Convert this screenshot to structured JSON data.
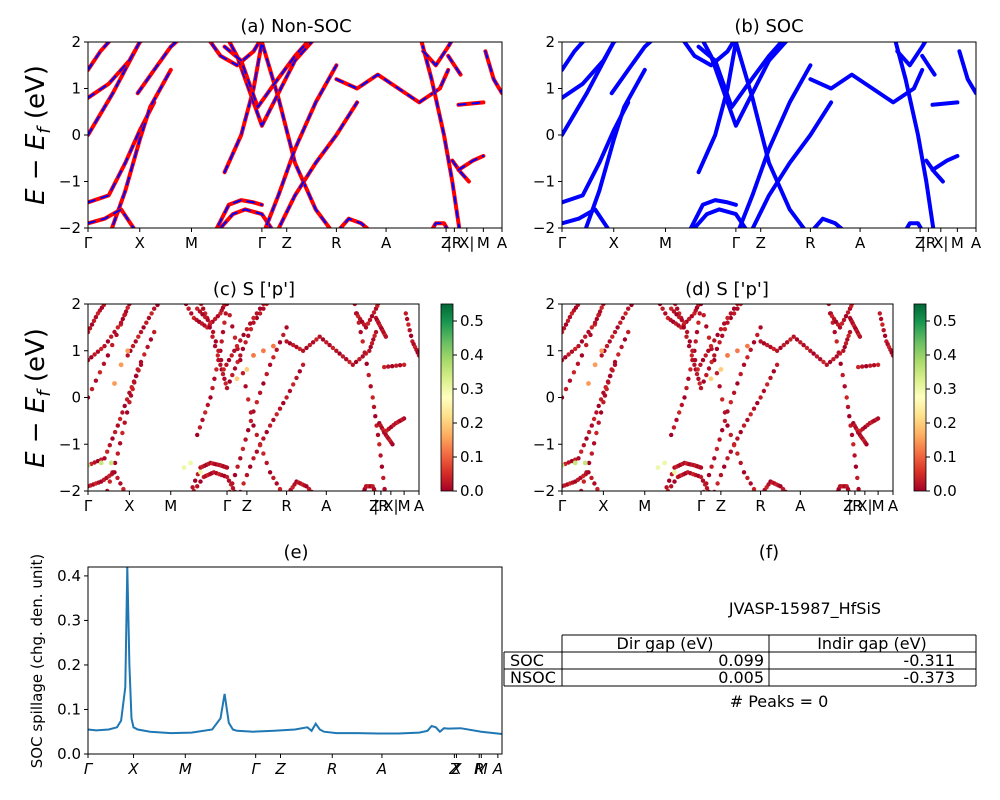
{
  "figure": {
    "ylabel_energy_main": "E − E",
    "ylabel_energy_sub": "f",
    "ylabel_energy_unit": " (eV)"
  },
  "colors": {
    "nsoc_line": "#ff0000",
    "soc_line": "#0000ff",
    "spillage_line": "#1f77b4",
    "colormap": [
      "#a50026",
      "#d73027",
      "#f46d43",
      "#fdae61",
      "#fee08b",
      "#ffffbf",
      "#d9ef8b",
      "#a6d96a",
      "#66bd63",
      "#1a9850",
      "#006837"
    ]
  },
  "kpath_labels": [
    "Γ",
    "X",
    "M",
    "Γ",
    "Z",
    "R",
    "A",
    "Z",
    "|R",
    "X|",
    "M",
    "A"
  ],
  "kpath_positions": [
    0,
    0.125,
    0.25,
    0.42,
    0.48,
    0.6,
    0.72,
    0.865,
    0.885,
    0.915,
    0.955,
    1.0
  ],
  "kpath_labels_spillage": [
    "Γ",
    "X",
    "M",
    "Γ",
    "Z",
    "R",
    "A",
    "Z",
    "X",
    "R",
    "M",
    "A"
  ],
  "kpath_positions_spillage": [
    0,
    0.11,
    0.235,
    0.405,
    0.465,
    0.59,
    0.71,
    0.885,
    0.89,
    0.945,
    0.95,
    0.99
  ],
  "chart_data": [
    {
      "id": "a",
      "type": "line",
      "title": "(a) Non-SOC",
      "ylim": [
        -2,
        2
      ],
      "yticks": [
        -2,
        -1,
        0,
        1,
        2
      ],
      "series_styles": [
        "NSOC solid red",
        "SOC dashed blue"
      ],
      "bands_note": "curves are sampled values of E-Ef (eV) along the k-path fraction x",
      "bands": [
        {
          "x": [
            0,
            0.06,
            0.125,
            0.19,
            0.25
          ],
          "y": [
            0,
            0.9,
            2.0,
            2.4,
            2.6
          ]
        },
        {
          "x": [
            0,
            0.05,
            0.1,
            0.125,
            0.16,
            0.2
          ],
          "y": [
            0.8,
            1.1,
            1.6,
            2.0,
            2.3,
            2.5
          ]
        },
        {
          "x": [
            0,
            0.03,
            0.06,
            0.09,
            0.125
          ],
          "y": [
            1.4,
            1.8,
            2.1,
            2.3,
            2.4
          ]
        },
        {
          "x": [
            0,
            0.05,
            0.09,
            0.125,
            0.16
          ],
          "y": [
            -1.45,
            -1.3,
            -0.6,
            0.1,
            0.7
          ]
        },
        {
          "x": [
            0.05,
            0.09,
            0.125,
            0.15,
            0.2
          ],
          "y": [
            -2.2,
            -1.2,
            -0.1,
            0.6,
            1.4
          ]
        },
        {
          "x": [
            0,
            0.04,
            0.08,
            0.125,
            0.17
          ],
          "y": [
            -1.9,
            -1.8,
            -1.6,
            -2.2,
            -2.6
          ]
        },
        {
          "x": [
            0.12,
            0.16,
            0.2,
            0.25
          ],
          "y": [
            0.9,
            1.4,
            1.9,
            2.3
          ]
        },
        {
          "x": [
            0.28,
            0.32,
            0.36,
            0.4,
            0.42
          ],
          "y": [
            2.2,
            1.7,
            1.5,
            1.8,
            2.1
          ]
        },
        {
          "x": [
            0.3,
            0.34,
            0.37,
            0.4,
            0.42
          ],
          "y": [
            -2.2,
            -1.5,
            -1.4,
            -1.45,
            -1.5
          ]
        },
        {
          "x": [
            0.3,
            0.35,
            0.38,
            0.42,
            0.45
          ],
          "y": [
            -2.2,
            -1.7,
            -1.6,
            -1.7,
            -2.1
          ]
        },
        {
          "x": [
            0.33,
            0.37,
            0.4,
            0.42,
            0.46,
            0.5,
            0.55,
            0.6
          ],
          "y": [
            -0.8,
            0.0,
            1.0,
            2.0,
            0.8,
            -0.6,
            -1.6,
            -2.2
          ]
        },
        {
          "x": [
            0.33,
            0.36,
            0.4,
            0.42,
            0.46,
            0.5,
            0.55
          ],
          "y": [
            2.2,
            1.7,
            0.7,
            0.2,
            0.9,
            1.6,
            2.1
          ]
        },
        {
          "x": [
            0.33,
            0.37,
            0.41,
            0.45,
            0.5,
            0.55
          ],
          "y": [
            1.9,
            1.6,
            0.6,
            1.1,
            1.7,
            2.2
          ]
        },
        {
          "x": [
            0.42,
            0.46,
            0.5,
            0.55,
            0.6
          ],
          "y": [
            -2.2,
            -1.3,
            -0.3,
            0.7,
            1.5
          ]
        },
        {
          "x": [
            0.45,
            0.5,
            0.55,
            0.6,
            0.65
          ],
          "y": [
            -2.2,
            -1.3,
            -0.6,
            0.0,
            0.7
          ]
        },
        {
          "x": [
            0.6,
            0.63,
            0.66,
            0.7,
            0.74
          ],
          "y": [
            -2.1,
            -1.8,
            -1.9,
            -2.2,
            -2.4
          ]
        },
        {
          "x": [
            0.6,
            0.65,
            0.7,
            0.75,
            0.8,
            0.85,
            0.87
          ],
          "y": [
            1.2,
            1.0,
            1.3,
            1.0,
            0.7,
            1.0,
            1.4
          ]
        },
        {
          "x": [
            0.8,
            0.83,
            0.86,
            0.88,
            0.9
          ],
          "y": [
            2.2,
            1.2,
            0.0,
            -1.0,
            -2.2
          ]
        },
        {
          "x": [
            0.81,
            0.84,
            0.87,
            0.89
          ],
          "y": [
            1.8,
            1.5,
            1.9,
            2.2
          ]
        },
        {
          "x": [
            0.82,
            0.84,
            0.86,
            0.88
          ],
          "y": [
            -2.2,
            -1.9,
            -1.9,
            -2.2
          ]
        },
        {
          "x": [
            0.88,
            0.9,
            0.92
          ],
          "y": [
            -0.55,
            -0.8,
            -1.0
          ]
        },
        {
          "x": [
            0.87,
            0.885,
            0.9
          ],
          "y": [
            1.7,
            1.5,
            1.3
          ]
        },
        {
          "x": [
            0.895,
            0.955
          ],
          "y": [
            0.65,
            0.7
          ]
        },
        {
          "x": [
            0.895,
            0.93,
            0.955
          ],
          "y": [
            -0.75,
            -0.55,
            -0.45
          ]
        },
        {
          "x": [
            0.96,
            0.98,
            1.0
          ],
          "y": [
            1.8,
            1.2,
            0.9
          ]
        }
      ]
    },
    {
      "id": "b",
      "type": "line",
      "title": "(b) SOC",
      "ylim": [
        -2,
        2
      ],
      "yticks": [
        -2,
        -1,
        0,
        1,
        2
      ],
      "series_styles": [
        "SOC solid blue"
      ],
      "bands_same_as": "a"
    },
    {
      "id": "c",
      "type": "scatter",
      "title": "(c)  S ['p']",
      "ylim": [
        -2,
        2
      ],
      "yticks": [
        -2,
        -1,
        0,
        1,
        2
      ],
      "colorbar": {
        "min": 0.0,
        "max": 0.55,
        "ticks": [
          "0.0",
          "0.1",
          "0.2",
          "0.3",
          "0.4",
          "0.5"
        ]
      },
      "bands_same_as": "a",
      "highlights": [
        {
          "x": [
            0.0,
            0.04,
            0.07
          ],
          "y": [
            -1.45,
            -1.4,
            -1.4
          ],
          "value": 0.35
        },
        {
          "x": [
            0.08,
            0.1,
            0.12
          ],
          "y": [
            0.3,
            0.7,
            1.0
          ],
          "value": 0.15
        },
        {
          "x": [
            0.29,
            0.31,
            0.34
          ],
          "y": [
            -1.5,
            -1.4,
            -1.6
          ],
          "value": 0.3
        },
        {
          "x": [
            0.45,
            0.48,
            0.5
          ],
          "y": [
            0.4,
            0.6,
            0.9
          ],
          "value": 0.2
        },
        {
          "x": [
            0.5,
            0.53,
            0.56
          ],
          "y": [
            0.9,
            1.0,
            1.1
          ],
          "value": 0.12
        }
      ]
    },
    {
      "id": "d",
      "type": "scatter",
      "title": "(d) S ['p']",
      "ylim": [
        -2,
        2
      ],
      "yticks": [
        -2,
        -1,
        0,
        1,
        2
      ],
      "colorbar": {
        "min": 0.0,
        "max": 0.55,
        "ticks": [
          "0.0",
          "0.1",
          "0.2",
          "0.3",
          "0.4",
          "0.5"
        ]
      },
      "bands_same_as": "c"
    },
    {
      "id": "e",
      "type": "line",
      "title": "(e)",
      "xlabel": "",
      "ylabel": "SOC spillage (chg. den. unit)",
      "ylim": [
        0,
        0.42
      ],
      "yticks": [
        "0.0",
        "0.1",
        "0.2",
        "0.3",
        "0.4"
      ],
      "x": [
        0,
        0.02,
        0.05,
        0.07,
        0.08,
        0.09,
        0.095,
        0.1,
        0.105,
        0.11,
        0.12,
        0.15,
        0.2,
        0.25,
        0.3,
        0.32,
        0.33,
        0.34,
        0.35,
        0.36,
        0.4,
        0.45,
        0.5,
        0.53,
        0.54,
        0.55,
        0.56,
        0.57,
        0.6,
        0.65,
        0.7,
        0.75,
        0.8,
        0.82,
        0.83,
        0.84,
        0.85,
        0.86,
        0.87,
        0.9,
        0.95,
        1.0
      ],
      "y": [
        0.055,
        0.053,
        0.055,
        0.06,
        0.075,
        0.15,
        0.42,
        0.2,
        0.08,
        0.06,
        0.055,
        0.05,
        0.047,
        0.048,
        0.055,
        0.08,
        0.135,
        0.07,
        0.055,
        0.052,
        0.05,
        0.052,
        0.055,
        0.06,
        0.052,
        0.068,
        0.055,
        0.05,
        0.047,
        0.047,
        0.046,
        0.046,
        0.048,
        0.052,
        0.063,
        0.06,
        0.05,
        0.058,
        0.057,
        0.058,
        0.05,
        0.045
      ]
    }
  ],
  "panel_f": {
    "title": "(f)",
    "material_id": "JVASP-15987_HfSiS",
    "table": {
      "headers": [
        "",
        "Dir gap (eV)",
        "Indir gap (eV)"
      ],
      "rows": [
        [
          "SOC",
          "0.099",
          "-0.311"
        ],
        [
          "NSOC",
          "0.005",
          "-0.373"
        ]
      ]
    },
    "peaks_text": "# Peaks = 0"
  }
}
